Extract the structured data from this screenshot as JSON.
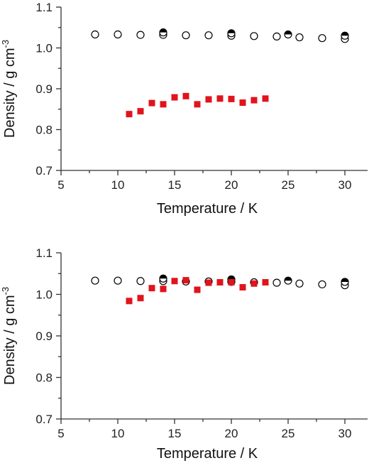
{
  "chart_data": [
    {
      "type": "scatter",
      "xlabel": "Temperature / K",
      "ylabel": {
        "main": "Density / g cm",
        "sup": "-3"
      },
      "xlim": [
        5,
        32
      ],
      "ylim": [
        0.7,
        1.1
      ],
      "xticks": [
        "5",
        "10",
        "15",
        "20",
        "25",
        "30"
      ],
      "yticks": [
        "0.7",
        "0.8",
        "0.9",
        "1.0",
        "1.1"
      ],
      "grid": false,
      "series": [
        {
          "marker": "open-circle",
          "color": "#000000",
          "points": [
            [
              8,
              1.033
            ],
            [
              10,
              1.033
            ],
            [
              12,
              1.032
            ],
            [
              14,
              1.032
            ],
            [
              16,
              1.031
            ],
            [
              18,
              1.031
            ],
            [
              20,
              1.03
            ],
            [
              22,
              1.029
            ],
            [
              24,
              1.028
            ],
            [
              26,
              1.026
            ],
            [
              28,
              1.024
            ],
            [
              30,
              1.022
            ]
          ]
        },
        {
          "marker": "half-filled-circle",
          "color": "#000000",
          "points": [
            [
              14,
              1.038
            ],
            [
              20,
              1.036
            ],
            [
              25,
              1.033
            ],
            [
              30,
              1.03
            ]
          ]
        },
        {
          "marker": "filled-square",
          "color": "#e0141c",
          "points": [
            [
              11,
              0.838
            ],
            [
              12,
              0.845
            ],
            [
              13,
              0.865
            ],
            [
              14,
              0.862
            ],
            [
              15,
              0.879
            ],
            [
              16,
              0.882
            ],
            [
              17,
              0.862
            ],
            [
              18,
              0.874
            ],
            [
              19,
              0.876
            ],
            [
              20,
              0.875
            ],
            [
              21,
              0.866
            ],
            [
              22,
              0.872
            ],
            [
              23,
              0.876
            ]
          ]
        }
      ]
    },
    {
      "type": "scatter",
      "xlabel": "Temperature / K",
      "ylabel": {
        "main": "Density / g cm",
        "sup": "-3"
      },
      "xlim": [
        5,
        32
      ],
      "ylim": [
        0.7,
        1.1
      ],
      "xticks": [
        "5",
        "10",
        "15",
        "20",
        "25",
        "30"
      ],
      "yticks": [
        "0.7",
        "0.8",
        "0.9",
        "1.0",
        "1.1"
      ],
      "grid": false,
      "series": [
        {
          "marker": "open-circle",
          "color": "#000000",
          "points": [
            [
              8,
              1.033
            ],
            [
              10,
              1.033
            ],
            [
              12,
              1.032
            ],
            [
              14,
              1.032
            ],
            [
              16,
              1.031
            ],
            [
              18,
              1.031
            ],
            [
              20,
              1.03
            ],
            [
              22,
              1.029
            ],
            [
              24,
              1.028
            ],
            [
              26,
              1.026
            ],
            [
              28,
              1.024
            ],
            [
              30,
              1.022
            ]
          ]
        },
        {
          "marker": "half-filled-circle",
          "color": "#000000",
          "points": [
            [
              14,
              1.038
            ],
            [
              20,
              1.036
            ],
            [
              25,
              1.033
            ],
            [
              30,
              1.03
            ]
          ]
        },
        {
          "marker": "filled-square",
          "color": "#e0141c",
          "points": [
            [
              11,
              0.984
            ],
            [
              12,
              0.991
            ],
            [
              13,
              1.015
            ],
            [
              14,
              1.013
            ],
            [
              15,
              1.032
            ],
            [
              16,
              1.034
            ],
            [
              17,
              1.011
            ],
            [
              18,
              1.028
            ],
            [
              19,
              1.029
            ],
            [
              20,
              1.029
            ],
            [
              21,
              1.017
            ],
            [
              22,
              1.026
            ],
            [
              23,
              1.029
            ]
          ]
        }
      ]
    }
  ]
}
